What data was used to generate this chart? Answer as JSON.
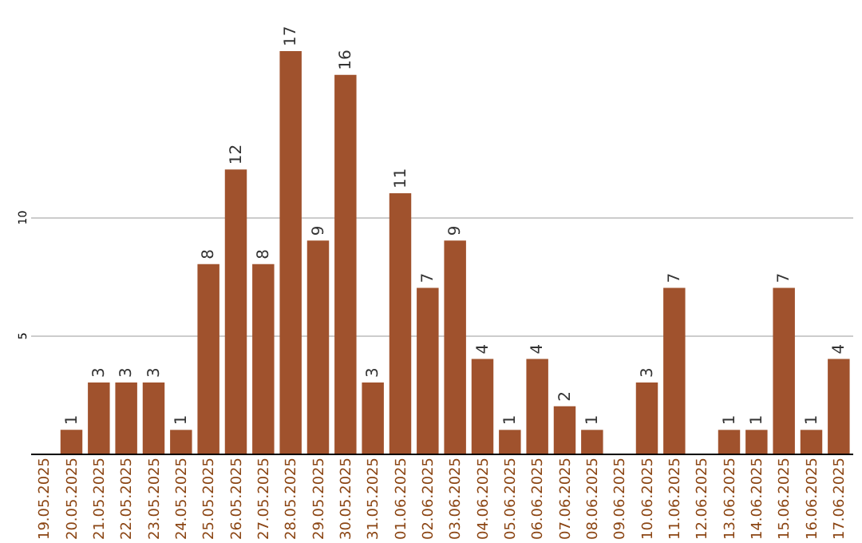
{
  "chart_data": {
    "type": "bar",
    "categories": [
      "19.05.2025",
      "20.05.2025",
      "21.05.2025",
      "22.05.2025",
      "23.05.2025",
      "24.05.2025",
      "25.05.2025",
      "26.05.2025",
      "27.05.2025",
      "28.05.2025",
      "29.05.2025",
      "30.05.2025",
      "31.05.2025",
      "01.06.2025",
      "02.06.2025",
      "03.06.2025",
      "04.06.2025",
      "05.06.2025",
      "06.06.2025",
      "07.06.2025",
      "08.06.2025",
      "09.06.2025",
      "10.06.2025",
      "11.06.2025",
      "12.06.2025",
      "13.06.2025",
      "14.06.2025",
      "15.06.2025",
      "16.06.2025",
      "17.06.2025"
    ],
    "values": [
      null,
      1,
      3,
      3,
      3,
      1,
      8,
      12,
      8,
      17,
      9,
      16,
      3,
      11,
      7,
      9,
      4,
      1,
      4,
      2,
      1,
      null,
      3,
      7,
      null,
      1,
      1,
      7,
      1,
      4
    ],
    "color": "#a0522d",
    "ylim": [
      0,
      17
    ],
    "yticks": [
      5,
      10
    ],
    "grid": "y",
    "data_labels": true
  }
}
